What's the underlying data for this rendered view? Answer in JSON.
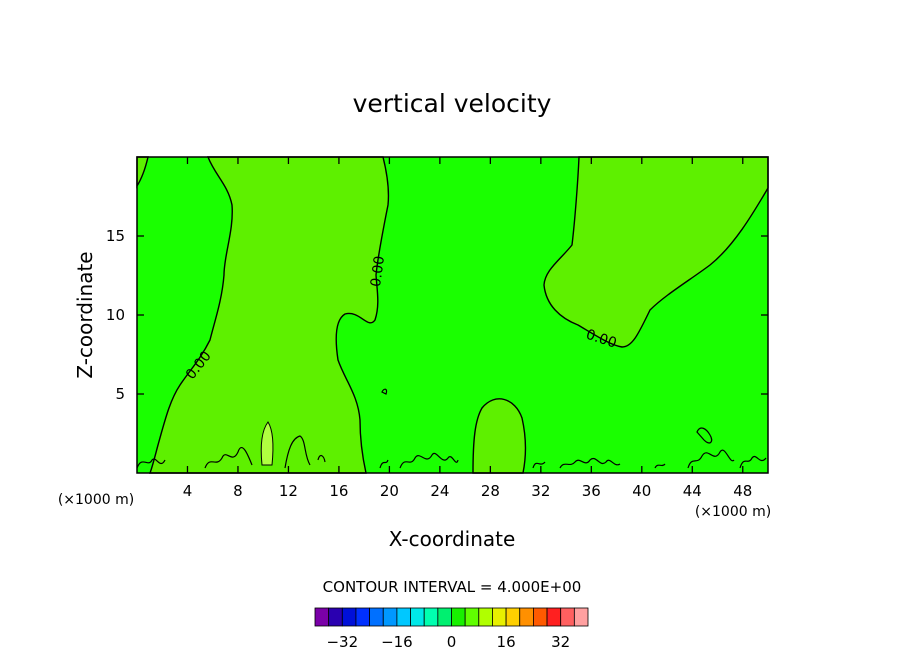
{
  "chart_data": {
    "type": "contour",
    "title": "vertical velocity",
    "xlabel": "X-coordinate",
    "ylabel": "Z-coordinate",
    "x_unit_note": "(×1000 m)",
    "xlim": [
      0,
      50
    ],
    "ylim": [
      0,
      20
    ],
    "x_ticks": [
      4,
      8,
      12,
      16,
      20,
      24,
      28,
      32,
      36,
      40,
      44,
      48
    ],
    "y_ticks": [
      5,
      10,
      15
    ],
    "contour_label": "0.00",
    "contour_interval_text": "CONTOUR INTERVAL = 4.000E+00",
    "colorbar": {
      "tick_labels": [
        "−32",
        "−16",
        "0",
        "16",
        "32"
      ],
      "tick_values": [
        -32,
        -16,
        0,
        16,
        32
      ],
      "colors": [
        "#7a00a8",
        "#2a00b0",
        "#0010d8",
        "#0030ff",
        "#0070ff",
        "#0098ff",
        "#00c8ff",
        "#00e8e8",
        "#00ffb0",
        "#00f070",
        "#18f000",
        "#60ff00",
        "#b0ff00",
        "#e8f000",
        "#ffd000",
        "#ff9000",
        "#ff5a00",
        "#ff2020",
        "#ff6060",
        "#ffa0a0"
      ]
    },
    "regions": [
      {
        "value_sign": "positive",
        "color": "#5ef000"
      },
      {
        "value_sign": "near-zero",
        "color": "#1aff00"
      }
    ]
  }
}
